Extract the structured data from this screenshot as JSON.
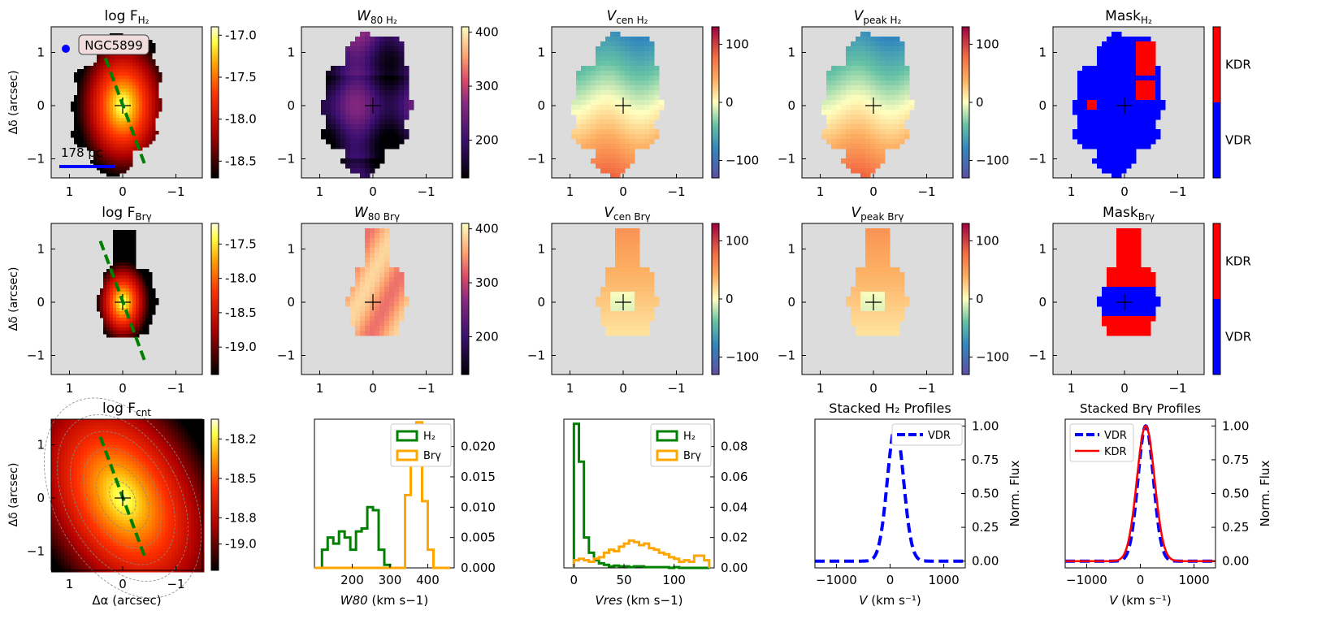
{
  "figure": {
    "galaxy": "NGC5899",
    "scalebar_label": "178 pc",
    "xlabel": "Δα (arcsec)",
    "ylabel": "Δδ (arcsec)",
    "map_ticks_x": [
      "1",
      "0",
      "−1"
    ],
    "map_ticks_y": [
      "1",
      "0",
      "−1"
    ],
    "colors": {
      "panel_bg": "#dcdcdc",
      "vdr": "#0000ff",
      "kdr": "#ff0000",
      "h2": "#008000",
      "brg": "#ffa500",
      "pa_line": "#008000"
    }
  },
  "chart_data": [
    {
      "type": "heatmap",
      "id": "logF_H2",
      "title": "log F_H2",
      "colorbar": {
        "cmap": "hot",
        "ticks": [
          "-17.0",
          "-17.5",
          "-18.0",
          "-18.5"
        ],
        "range": [
          -18.7,
          -16.9
        ]
      }
    },
    {
      "type": "heatmap",
      "id": "W80_H2",
      "title": "W80 H2",
      "colorbar": {
        "cmap": "inferno",
        "ticks": [
          "400",
          "300",
          "200"
        ],
        "range": [
          130,
          410
        ]
      }
    },
    {
      "type": "heatmap",
      "id": "Vcen_H2",
      "title": "Vcen H2",
      "colorbar": {
        "cmap": "spectral",
        "ticks": [
          "100",
          "0",
          "−100"
        ],
        "range": [
          -130,
          130
        ]
      }
    },
    {
      "type": "heatmap",
      "id": "Vpeak_H2",
      "title": "Vpeak H2",
      "colorbar": {
        "cmap": "spectral",
        "ticks": [
          "100",
          "0",
          "−100"
        ],
        "range": [
          -130,
          130
        ]
      }
    },
    {
      "type": "heatmap",
      "id": "Mask_H2",
      "title": "Mask H2",
      "colorbar": {
        "cmap": "mask",
        "labels": [
          "KDR",
          "VDR"
        ]
      }
    },
    {
      "type": "heatmap",
      "id": "logF_Brg",
      "title": "log F_Brγ",
      "colorbar": {
        "cmap": "hot",
        "ticks": [
          "-17.5",
          "-18.0",
          "-18.5",
          "-19.0"
        ],
        "range": [
          -19.4,
          -17.2
        ]
      }
    },
    {
      "type": "heatmap",
      "id": "W80_Brg",
      "title": "W80 Brγ",
      "colorbar": {
        "cmap": "inferno",
        "ticks": [
          "400",
          "300",
          "200"
        ],
        "range": [
          130,
          410
        ]
      }
    },
    {
      "type": "heatmap",
      "id": "Vcen_Brg",
      "title": "Vcen Brγ",
      "colorbar": {
        "cmap": "spectral",
        "ticks": [
          "100",
          "0",
          "−100"
        ],
        "range": [
          -130,
          130
        ]
      }
    },
    {
      "type": "heatmap",
      "id": "Vpeak_Brg",
      "title": "Vpeak Brγ",
      "colorbar": {
        "cmap": "spectral",
        "ticks": [
          "100",
          "0",
          "−100"
        ],
        "range": [
          -130,
          130
        ]
      }
    },
    {
      "type": "heatmap",
      "id": "Mask_Brg",
      "title": "Mask Brγ",
      "colorbar": {
        "cmap": "mask",
        "labels": [
          "KDR",
          "VDR"
        ]
      }
    },
    {
      "type": "heatmap",
      "id": "logF_cnt",
      "title": "log F_cnt",
      "colorbar": {
        "cmap": "hot",
        "ticks": [
          "-18.2",
          "-18.5",
          "-18.8",
          "-19.0"
        ],
        "range": [
          -19.2,
          -18.05
        ]
      }
    },
    {
      "type": "bar",
      "id": "hist_W80",
      "xlabel": "W80 (km s−1)",
      "xlim": [
        100,
        470
      ],
      "ylim": [
        0,
        0.0245
      ],
      "xticks": [
        "200",
        "300",
        "400"
      ],
      "yticks": [
        "0.000",
        "0.005",
        "0.010",
        "0.015",
        "0.020"
      ],
      "series": [
        {
          "name": "H2",
          "edges": [
            120,
            135,
            150,
            165,
            180,
            195,
            210,
            225,
            240,
            255,
            270,
            285,
            300
          ],
          "values": [
            0.003,
            0.005,
            0.004,
            0.006,
            0.005,
            0.003,
            0.006,
            0.0065,
            0.01,
            0.0095,
            0.003,
            0.0005
          ]
        },
        {
          "name": "Brγ",
          "edges": [
            100,
            340,
            355,
            370,
            385,
            400,
            415,
            430,
            460
          ],
          "values": [
            0,
            0.012,
            0.0175,
            0.024,
            0.011,
            0.003,
            0,
            0
          ]
        }
      ]
    },
    {
      "type": "bar",
      "id": "hist_Vres",
      "xlabel": "Vres (km s−1)",
      "xlim": [
        -10,
        140
      ],
      "ylim": [
        0,
        0.098
      ],
      "xticks": [
        "0",
        "50",
        "100"
      ],
      "yticks": [
        "0.00",
        "0.02",
        "0.04",
        "0.06",
        "0.08"
      ],
      "series": [
        {
          "name": "H2",
          "edges": [
            0,
            5,
            10,
            15,
            20,
            25,
            30,
            35,
            40,
            45,
            50,
            55,
            60,
            65,
            70,
            75,
            80,
            85,
            90,
            95,
            100,
            105,
            110,
            115,
            120,
            125,
            130,
            135
          ],
          "values": [
            0.095,
            0.07,
            0.02,
            0.01,
            0.005,
            0.003,
            0.002,
            0.001,
            0.0015,
            0.001,
            0.001,
            0.0005,
            0.001,
            0.001,
            0.0005,
            0.0005,
            0.0005,
            0.0005,
            0.0005,
            0,
            0.0005,
            0,
            0,
            0,
            0,
            0,
            0
          ]
        },
        {
          "name": "Brγ",
          "edges": [
            0,
            5,
            10,
            15,
            20,
            25,
            30,
            35,
            40,
            45,
            50,
            55,
            60,
            65,
            70,
            75,
            80,
            85,
            90,
            95,
            100,
            105,
            110,
            115,
            120,
            125,
            130,
            135
          ],
          "values": [
            0.005,
            0.006,
            0.005,
            0.004,
            0.006,
            0.007,
            0.01,
            0.012,
            0.011,
            0.014,
            0.016,
            0.018,
            0.017,
            0.015,
            0.016,
            0.013,
            0.012,
            0.01,
            0.009,
            0.007,
            0.006,
            0.004,
            0.005,
            0.004,
            0.008,
            0.008,
            0.005
          ]
        }
      ]
    },
    {
      "type": "line",
      "id": "stacked_H2",
      "title": "Stacked H2 Profiles",
      "xlabel": "V (km s−1)",
      "ylabel": "Norm. Flux",
      "xlim": [
        -1400,
        1400
      ],
      "ylim": [
        -0.05,
        1.05
      ],
      "xticks": [
        "−1000",
        "0",
        "1000"
      ],
      "yticks": [
        "0.00",
        "0.25",
        "0.50",
        "0.75",
        "1.00"
      ],
      "series": [
        {
          "name": "VDR",
          "center": 100,
          "sigma": 150,
          "style": "dashed"
        }
      ]
    },
    {
      "type": "line",
      "id": "stacked_Brg",
      "title": "Stacked Brγ Profiles",
      "xlabel": "V (km s−1)",
      "ylabel": "Norm. Flux",
      "xlim": [
        -1400,
        1400
      ],
      "ylim": [
        -0.05,
        1.05
      ],
      "xticks": [
        "−1000",
        "0",
        "1000"
      ],
      "yticks": [
        "0.00",
        "0.25",
        "0.50",
        "0.75",
        "1.00"
      ],
      "series": [
        {
          "name": "VDR",
          "center": 100,
          "sigma": 145,
          "style": "dashed"
        },
        {
          "name": "KDR",
          "center": 100,
          "sigma": 165,
          "style": "solid"
        }
      ]
    }
  ]
}
